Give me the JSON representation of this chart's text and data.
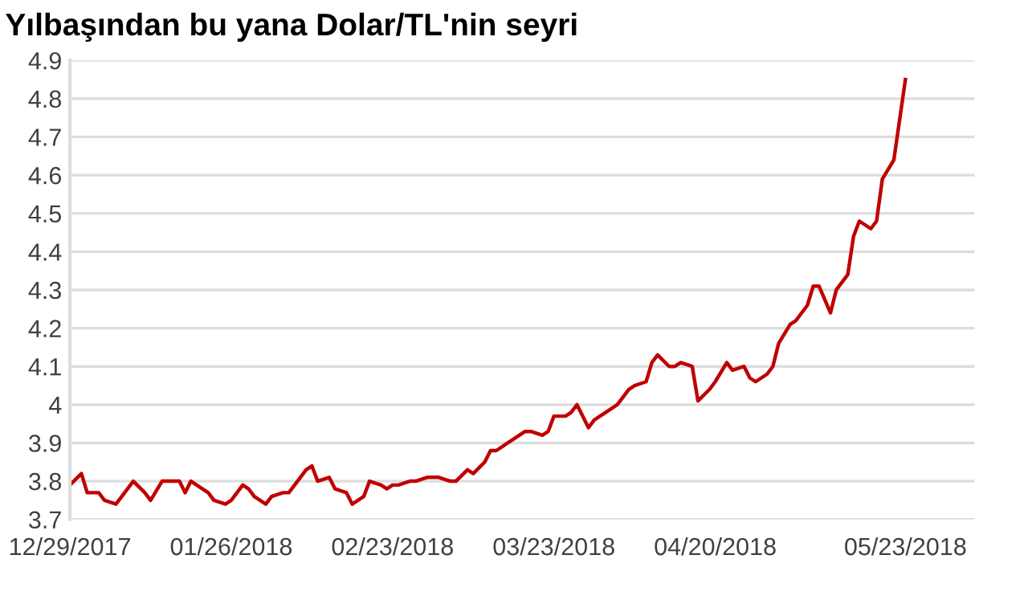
{
  "chart_data": {
    "type": "line",
    "title": "Yılbaşından bu yana Dolar/TL'nin seyri",
    "x": [
      "2017-12-29",
      "2017-12-31",
      "2018-01-01",
      "2018-01-03",
      "2018-01-04",
      "2018-01-06",
      "2018-01-07",
      "2018-01-09",
      "2018-01-11",
      "2018-01-12",
      "2018-01-14",
      "2018-01-16",
      "2018-01-17",
      "2018-01-18",
      "2018-01-19",
      "2018-01-21",
      "2018-01-22",
      "2018-01-23",
      "2018-01-25",
      "2018-01-26",
      "2018-01-28",
      "2018-01-29",
      "2018-01-30",
      "2018-02-01",
      "2018-02-02",
      "2018-02-04",
      "2018-02-05",
      "2018-02-06",
      "2018-02-08",
      "2018-02-09",
      "2018-02-10",
      "2018-02-12",
      "2018-02-13",
      "2018-02-15",
      "2018-02-16",
      "2018-02-18",
      "2018-02-19",
      "2018-02-21",
      "2018-02-22",
      "2018-02-23",
      "2018-02-24",
      "2018-02-26",
      "2018-02-27",
      "2018-03-01",
      "2018-03-02",
      "2018-03-03",
      "2018-03-05",
      "2018-03-06",
      "2018-03-08",
      "2018-03-09",
      "2018-03-11",
      "2018-03-12",
      "2018-03-13",
      "2018-03-15",
      "2018-03-16",
      "2018-03-18",
      "2018-03-19",
      "2018-03-21",
      "2018-03-22",
      "2018-03-23",
      "2018-03-25",
      "2018-03-26",
      "2018-03-27",
      "2018-03-29",
      "2018-03-30",
      "2018-04-01",
      "2018-04-02",
      "2018-04-03",
      "2018-04-05",
      "2018-04-06",
      "2018-04-08",
      "2018-04-09",
      "2018-04-10",
      "2018-04-12",
      "2018-04-13",
      "2018-04-14",
      "2018-04-16",
      "2018-04-17",
      "2018-04-19",
      "2018-04-20",
      "2018-04-22",
      "2018-04-23",
      "2018-04-25",
      "2018-04-26",
      "2018-04-27",
      "2018-04-29",
      "2018-04-30",
      "2018-05-01",
      "2018-05-03",
      "2018-05-04",
      "2018-05-06",
      "2018-05-07",
      "2018-05-08",
      "2018-05-10",
      "2018-05-11",
      "2018-05-13",
      "2018-05-14",
      "2018-05-15",
      "2018-05-17",
      "2018-05-18",
      "2018-05-19",
      "2018-05-21",
      "2018-05-23"
    ],
    "series": [
      {
        "color": "#c00000",
        "values": [
          3.79,
          3.82,
          3.77,
          3.77,
          3.75,
          3.74,
          3.76,
          3.8,
          3.77,
          3.75,
          3.8,
          3.8,
          3.8,
          3.77,
          3.8,
          3.78,
          3.77,
          3.75,
          3.74,
          3.75,
          3.79,
          3.78,
          3.76,
          3.74,
          3.76,
          3.77,
          3.77,
          3.79,
          3.83,
          3.84,
          3.8,
          3.81,
          3.78,
          3.77,
          3.74,
          3.76,
          3.8,
          3.79,
          3.78,
          3.79,
          3.79,
          3.8,
          3.8,
          3.81,
          3.81,
          3.81,
          3.8,
          3.8,
          3.83,
          3.82,
          3.85,
          3.88,
          3.88,
          3.9,
          3.91,
          3.93,
          3.93,
          3.92,
          3.93,
          3.97,
          3.97,
          3.98,
          4.0,
          3.94,
          3.96,
          3.98,
          3.99,
          4.0,
          4.04,
          4.05,
          4.06,
          4.11,
          4.13,
          4.1,
          4.1,
          4.11,
          4.1,
          4.01,
          4.04,
          4.06,
          4.11,
          4.09,
          4.1,
          4.07,
          4.06,
          4.08,
          4.1,
          4.16,
          4.21,
          4.22,
          4.26,
          4.31,
          4.31,
          4.24,
          4.3,
          4.34,
          4.44,
          4.48,
          4.46,
          4.48,
          4.59,
          4.64,
          4.85
        ]
      }
    ],
    "xlim": [
      "2017-12-29",
      "2018-06-04"
    ],
    "xticks": [
      {
        "value": "2017-12-29",
        "label": "12/29/2017"
      },
      {
        "value": "2018-01-26",
        "label": "01/26/2018"
      },
      {
        "value": "2018-02-23",
        "label": "02/23/2018"
      },
      {
        "value": "2018-03-23",
        "label": "03/23/2018"
      },
      {
        "value": "2018-04-20",
        "label": "04/20/2018"
      },
      {
        "value": "2018-05-23",
        "label": "05/23/2018"
      }
    ],
    "ylim": [
      3.7,
      4.9
    ],
    "yticks": [
      3.7,
      3.8,
      3.9,
      4,
      4.1,
      4.2,
      4.3,
      4.4,
      4.5,
      4.6,
      4.7,
      4.8,
      4.9
    ],
    "grid": "y",
    "marker": "none",
    "line_style": "solid"
  }
}
